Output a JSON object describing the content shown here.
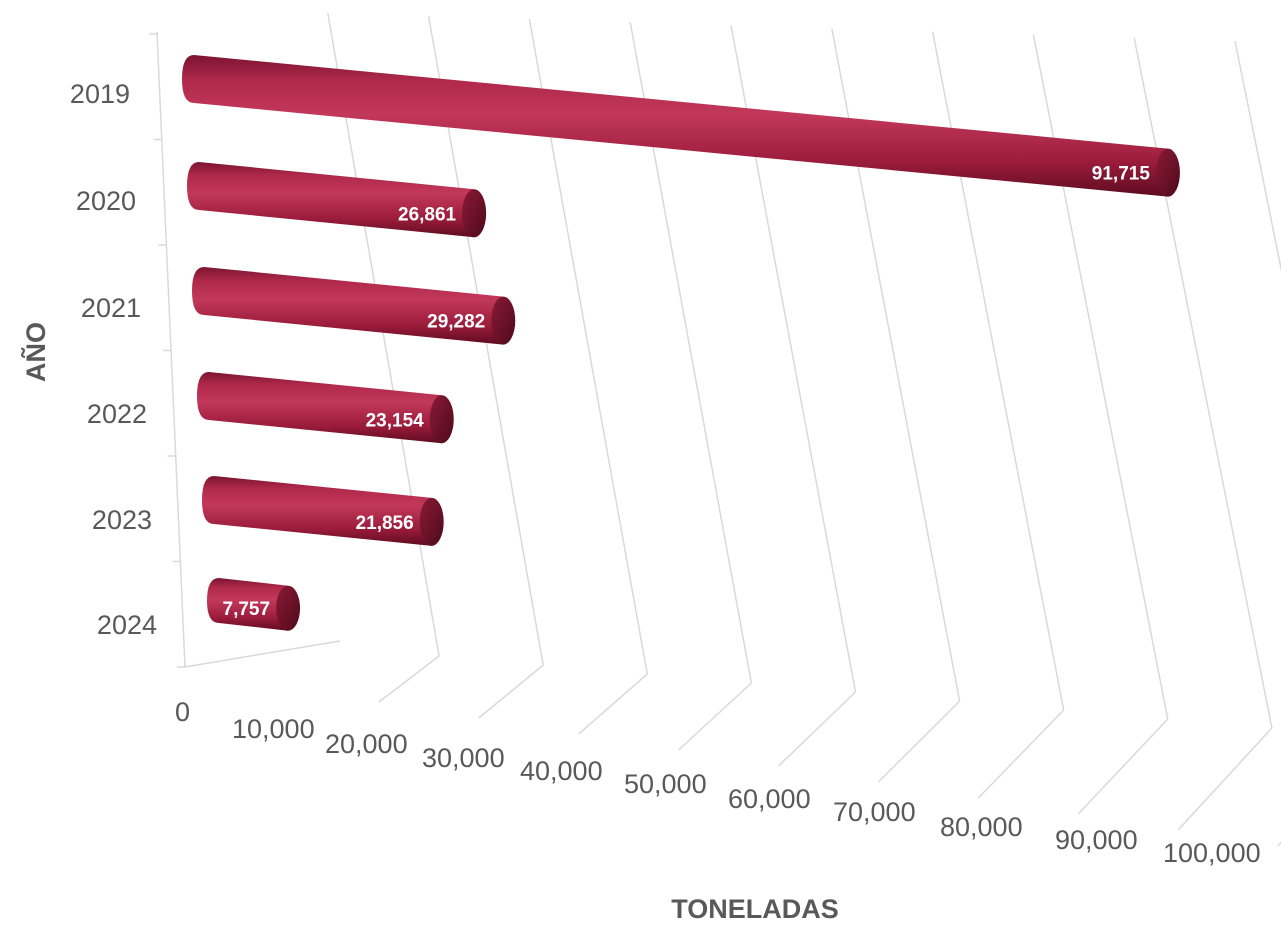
{
  "chart_data": {
    "type": "bar",
    "orientation": "horizontal",
    "style": "3d-cylinder",
    "categories": [
      "2019",
      "2020",
      "2021",
      "2022",
      "2023",
      "2024"
    ],
    "values": [
      91715,
      26861,
      29282,
      23154,
      21856,
      7757
    ],
    "data_labels": [
      "91,715",
      "26,861",
      "29,282",
      "23,154",
      "21,856",
      "7,757"
    ],
    "x_ticks": [
      "0",
      "10,000",
      "20,000",
      "30,000",
      "40,000",
      "50,000",
      "60,000",
      "70,000",
      "80,000",
      "90,000",
      "100,000"
    ],
    "xlabel": "TONELADAS",
    "ylabel": "AÑO",
    "xlim": [
      0,
      100000
    ],
    "grid": true,
    "legend": "none",
    "colors": {
      "bar": "#a8203f",
      "bar_light": "#c2385a",
      "bar_dark": "#6e0f26",
      "bar_end": "#7a1430",
      "grid": "#d9d9d9",
      "text": "#595959"
    }
  }
}
